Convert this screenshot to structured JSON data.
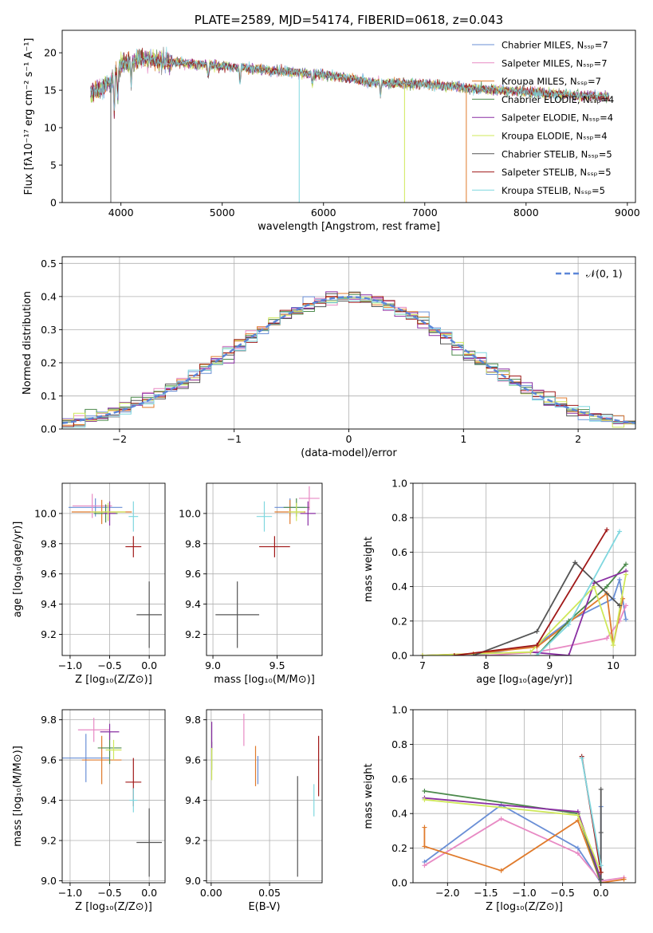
{
  "colors": {
    "chabrier_miles": "#6a8fd6",
    "salpeter_miles": "#e88ac4",
    "kroupa_miles": "#e07b2c",
    "chabrier_elodie": "#4c8a4c",
    "salpeter_elodie": "#8a2fa3",
    "kroupa_elodie": "#cfe85a",
    "chabrier_stelib": "#555555",
    "salpeter_stelib": "#a01818",
    "kroupa_stelib": "#7fd7df"
  },
  "chart_data": [
    {
      "id": "spectrum",
      "type": "line",
      "title": "PLATE=2589, MJD=54174, FIBERID=0618, z=0.043",
      "xlabel": "wavelength [Angstrom, rest frame]",
      "ylabel": "Flux [fλ10⁻¹⁷ erg cm⁻² s⁻¹ A⁻¹]",
      "xlim": [
        3420,
        9080
      ],
      "ylim": [
        0,
        23
      ],
      "xticks": [
        "4000",
        "5000",
        "6000",
        "7000",
        "8000",
        "9000"
      ],
      "yticks": [
        "0",
        "5",
        "10",
        "15",
        "20"
      ],
      "legend_position": "right",
      "legend": [
        "Chabrier MILES, Nₛₛₚ=7",
        "Salpeter MILES, Nₛₛₚ=7",
        "Kroupa MILES, Nₛₛₚ=7",
        "Chabrier ELODIE, Nₛₛₚ=4",
        "Salpeter ELODIE, Nₛₛₚ=4",
        "Kroupa ELODIE, Nₛₛₚ=4",
        "Chabrier STELIB, Nₛₛₚ=5",
        "Salpeter STELIB, Nₛₛₚ=5",
        "Kroupa STELIB, Nₛₛₚ=5"
      ],
      "continuum": [
        [
          3700,
          14.6
        ],
        [
          3900,
          16
        ],
        [
          4000,
          18.5
        ],
        [
          4200,
          19.2
        ],
        [
          4500,
          18.8
        ],
        [
          5000,
          18.2
        ],
        [
          5500,
          17.6
        ],
        [
          6000,
          17.1
        ],
        [
          6500,
          16
        ],
        [
          7000,
          15.8
        ],
        [
          7500,
          15.2
        ],
        [
          8000,
          14.8
        ],
        [
          8500,
          14.3
        ],
        [
          8820,
          14.1
        ]
      ],
      "drops": [
        {
          "x": 3900,
          "y": 0,
          "color": "chabrier_stelib"
        },
        {
          "x": 5760,
          "y": 0,
          "color": "kroupa_stelib"
        },
        {
          "x": 6800,
          "y": 0,
          "color": "kroupa_elodie"
        },
        {
          "x": 7410,
          "y": 0,
          "color": "kroupa_miles"
        }
      ]
    },
    {
      "id": "residuals",
      "type": "histogram",
      "xlabel": "(data-model)/error",
      "ylabel": "Normed distribution",
      "xlim": [
        -2.5,
        2.5
      ],
      "ylim": [
        0,
        0.52
      ],
      "xticks": [
        "−2",
        "−1",
        "0",
        "1",
        "2"
      ],
      "yticks": [
        "0.0",
        "0.1",
        "0.2",
        "0.3",
        "0.4",
        "0.5"
      ],
      "legend": [
        "𝒩(0, 1)"
      ],
      "legend_position": "top-right",
      "bin_width": 0.1
    },
    {
      "id": "age_vs_z",
      "type": "errorbar",
      "xlabel": "Z [log₁₀(Z/Z⊙)]",
      "ylabel": "age  [log₁₀(age/yr)]",
      "xlim": [
        -1.1,
        0.2
      ],
      "ylim": [
        9.06,
        10.2
      ],
      "xticks": [
        "−1.0",
        "−0.5",
        "0.0"
      ],
      "yticks": [
        "9.2",
        "9.4",
        "9.6",
        "9.8",
        "10.0"
      ],
      "points": [
        {
          "c": "chabrier_miles",
          "x": -0.68,
          "xe": 0.34,
          "y": 10.04,
          "ye": 0.06
        },
        {
          "c": "salpeter_miles",
          "x": -0.72,
          "xe": 0.25,
          "y": 10.05,
          "ye": 0.08
        },
        {
          "c": "kroupa_miles",
          "x": -0.6,
          "xe": 0.38,
          "y": 10.01,
          "ye": 0.08
        },
        {
          "c": "chabrier_elodie",
          "x": -0.55,
          "xe": 0.15,
          "y": 10.0,
          "ye": 0.06
        },
        {
          "c": "salpeter_elodie",
          "x": -0.5,
          "xe": 0.08,
          "y": 10.0,
          "ye": 0.08
        },
        {
          "c": "kroupa_elodie",
          "x": -0.52,
          "xe": 0.22,
          "y": 10.01,
          "ye": 0.06
        },
        {
          "c": "chabrier_stelib",
          "x": 0.0,
          "xe": 0.16,
          "y": 9.33,
          "ye": 0.22
        },
        {
          "c": "salpeter_stelib",
          "x": -0.2,
          "xe": 0.1,
          "y": 9.78,
          "ye": 0.07
        },
        {
          "c": "kroupa_stelib",
          "x": -0.2,
          "xe": 0.06,
          "y": 9.98,
          "ye": 0.1
        }
      ]
    },
    {
      "id": "age_vs_mass",
      "type": "errorbar",
      "xlabel": "mass [log₁₀(M/M⊙)]",
      "xlim": [
        8.95,
        9.85
      ],
      "ylim": [
        9.06,
        10.2
      ],
      "xticks": [
        "9.0",
        "9.5"
      ],
      "yticks": [
        "9.2",
        "9.4",
        "9.6",
        "9.8",
        "10.0"
      ],
      "points": [
        {
          "c": "chabrier_miles",
          "x": 9.6,
          "xe": 0.12,
          "y": 10.04,
          "ye": 0.06
        },
        {
          "c": "salpeter_miles",
          "x": 9.75,
          "xe": 0.08,
          "y": 10.1,
          "ye": 0.08
        },
        {
          "c": "kroupa_miles",
          "x": 9.6,
          "xe": 0.12,
          "y": 10.01,
          "ye": 0.08
        },
        {
          "c": "chabrier_elodie",
          "x": 9.65,
          "xe": 0.1,
          "y": 10.04,
          "ye": 0.06
        },
        {
          "c": "salpeter_elodie",
          "x": 9.74,
          "xe": 0.06,
          "y": 10.0,
          "ye": 0.08
        },
        {
          "c": "kroupa_elodie",
          "x": 9.65,
          "xe": 0.06,
          "y": 10.01,
          "ye": 0.06
        },
        {
          "c": "chabrier_stelib",
          "x": 9.19,
          "xe": 0.17,
          "y": 9.33,
          "ye": 0.22
        },
        {
          "c": "salpeter_stelib",
          "x": 9.48,
          "xe": 0.12,
          "y": 9.78,
          "ye": 0.07
        },
        {
          "c": "kroupa_stelib",
          "x": 9.4,
          "xe": 0.06,
          "y": 9.98,
          "ye": 0.1
        }
      ]
    },
    {
      "id": "massweight_vs_age",
      "type": "line",
      "xlabel": "age  [log₁₀(age/yr)]",
      "ylabel": "mass weight",
      "xlim": [
        6.85,
        10.35
      ],
      "ylim": [
        0,
        1.0
      ],
      "xticks": [
        "7",
        "8",
        "9",
        "10"
      ],
      "yticks": [
        "0.0",
        "0.2",
        "0.4",
        "0.6",
        "0.8",
        "1.0"
      ],
      "series": [
        {
          "c": "chabrier_miles",
          "x": [
            7.0,
            8.0,
            8.8,
            9.3,
            10.0,
            10.1,
            10.2
          ],
          "y": [
            0.0,
            0.01,
            0.06,
            0.2,
            0.33,
            0.44,
            0.21
          ]
        },
        {
          "c": "salpeter_miles",
          "x": [
            7.0,
            8.0,
            8.8,
            9.9,
            10.1,
            10.2
          ],
          "y": [
            0.0,
            0.0,
            0.02,
            0.1,
            0.2,
            0.29
          ]
        },
        {
          "c": "kroupa_miles",
          "x": [
            7.0,
            7.8,
            8.8,
            9.9,
            10.0,
            10.15
          ],
          "y": [
            0.0,
            0.01,
            0.05,
            0.36,
            0.06,
            0.33
          ]
        },
        {
          "c": "chabrier_elodie",
          "x": [
            8.8,
            9.3,
            9.9,
            10.2
          ],
          "y": [
            0.0,
            0.2,
            0.4,
            0.53
          ]
        },
        {
          "c": "salpeter_elodie",
          "x": [
            8.7,
            9.3,
            9.7,
            10.2
          ],
          "y": [
            0.02,
            0.0,
            0.42,
            0.49
          ]
        },
        {
          "c": "kroupa_elodie",
          "x": [
            7.0,
            8.7,
            9.7,
            10.0,
            10.2
          ],
          "y": [
            0.0,
            0.02,
            0.4,
            0.06,
            0.47
          ]
        },
        {
          "c": "chabrier_stelib",
          "x": [
            7.8,
            8.8,
            9.4,
            10.1
          ],
          "y": [
            0.0,
            0.14,
            0.54,
            0.29
          ]
        },
        {
          "c": "salpeter_stelib",
          "x": [
            7.5,
            8.8,
            9.9
          ],
          "y": [
            0.0,
            0.06,
            0.73
          ]
        },
        {
          "c": "kroupa_stelib",
          "x": [
            8.8,
            9.3,
            10.1
          ],
          "y": [
            0.0,
            0.18,
            0.72
          ]
        }
      ]
    },
    {
      "id": "mass_vs_z",
      "type": "errorbar",
      "xlabel": "Z [log₁₀(Z/Z⊙)]",
      "ylabel": "mass [log₁₀(M/M⊙)]",
      "xlim": [
        -1.1,
        0.2
      ],
      "ylim": [
        8.99,
        9.85
      ],
      "xticks": [
        "−1.0",
        "−0.5",
        "0.0"
      ],
      "yticks": [
        "9.0",
        "9.2",
        "9.4",
        "9.6",
        "9.8"
      ],
      "points": [
        {
          "c": "chabrier_miles",
          "x": -0.8,
          "xe": 0.3,
          "y": 9.61,
          "ye": 0.12
        },
        {
          "c": "salpeter_miles",
          "x": -0.7,
          "xe": 0.2,
          "y": 9.75,
          "ye": 0.06
        },
        {
          "c": "kroupa_miles",
          "x": -0.6,
          "xe": 0.25,
          "y": 9.6,
          "ye": 0.12
        },
        {
          "c": "chabrier_elodie",
          "x": -0.5,
          "xe": 0.15,
          "y": 9.66,
          "ye": 0.08
        },
        {
          "c": "salpeter_elodie",
          "x": -0.5,
          "xe": 0.12,
          "y": 9.74,
          "ye": 0.04
        },
        {
          "c": "kroupa_elodie",
          "x": -0.45,
          "xe": 0.1,
          "y": 9.65,
          "ye": 0.05
        },
        {
          "c": "chabrier_stelib",
          "x": 0.0,
          "xe": 0.16,
          "y": 9.19,
          "ye": 0.17
        },
        {
          "c": "salpeter_stelib",
          "x": -0.2,
          "xe": 0.1,
          "y": 9.49,
          "ye": 0.12
        },
        {
          "c": "kroupa_stelib",
          "x": -0.2,
          "xe": 0.05,
          "y": 9.4,
          "ye": 0.06
        }
      ]
    },
    {
      "id": "mass_vs_ebv",
      "type": "errorbar",
      "xlabel": "E(B-V)",
      "xlim": [
        -0.004,
        0.095
      ],
      "ylim": [
        8.99,
        9.85
      ],
      "xticks": [
        "0.00",
        "0.05"
      ],
      "yticks": [
        "9.0",
        "9.2",
        "9.4",
        "9.6",
        "9.8"
      ],
      "points": [
        {
          "c": "chabrier_miles",
          "x": 0.04,
          "xe": 0,
          "y": 9.55,
          "ye": 0.07
        },
        {
          "c": "salpeter_miles",
          "x": 0.028,
          "xe": 0,
          "y": 9.75,
          "ye": 0.08
        },
        {
          "c": "kroupa_miles",
          "x": 0.038,
          "xe": 0,
          "y": 9.57,
          "ye": 0.1
        },
        {
          "c": "chabrier_elodie",
          "x": 0.0005,
          "xe": 0,
          "y": 9.62,
          "ye": 0.07
        },
        {
          "c": "salpeter_elodie",
          "x": 0.0005,
          "xe": 0,
          "y": 9.72,
          "ye": 0.07
        },
        {
          "c": "kroupa_elodie",
          "x": 0.0005,
          "xe": 0,
          "y": 9.58,
          "ye": 0.08
        },
        {
          "c": "chabrier_stelib",
          "x": 0.074,
          "xe": 0,
          "y": 9.27,
          "ye": 0.25
        },
        {
          "c": "salpeter_stelib",
          "x": 0.092,
          "xe": 0,
          "y": 9.57,
          "ye": 0.15
        },
        {
          "c": "kroupa_stelib",
          "x": 0.088,
          "xe": 0,
          "y": 9.4,
          "ye": 0.08
        }
      ]
    },
    {
      "id": "massweight_vs_z",
      "type": "line",
      "xlabel": "Z [log₁₀(Z/Z⊙)]",
      "ylabel": "mass weight",
      "xlim": [
        -2.45,
        0.45
      ],
      "ylim": [
        0,
        1.0
      ],
      "xticks": [
        "−2.0",
        "−1.5",
        "−1.0",
        "−0.5",
        "0.0"
      ],
      "yticks": [
        "0.0",
        "0.2",
        "0.4",
        "0.6",
        "0.8",
        "1.0"
      ],
      "series": [
        {
          "c": "chabrier_miles",
          "x": [
            -2.3,
            -1.3,
            -0.3,
            0.0,
            0.0
          ],
          "y": [
            0.12,
            0.45,
            0.2,
            0.0,
            0.44
          ]
        },
        {
          "c": "salpeter_miles",
          "x": [
            -2.3,
            -1.3,
            -0.3,
            0.0,
            0.3
          ],
          "y": [
            0.1,
            0.37,
            0.17,
            0.01,
            0.03
          ]
        },
        {
          "c": "kroupa_miles",
          "x": [
            -2.3,
            -2.3,
            -1.3,
            -0.3,
            0.0,
            0.3
          ],
          "y": [
            0.32,
            0.21,
            0.07,
            0.36,
            0.0,
            0.02
          ]
        },
        {
          "c": "chabrier_elodie",
          "x": [
            -2.3,
            -0.3,
            0.0
          ],
          "y": [
            0.53,
            0.4,
            0.0
          ]
        },
        {
          "c": "salpeter_elodie",
          "x": [
            -2.3,
            -0.3,
            0.0
          ],
          "y": [
            0.49,
            0.41,
            0.02
          ]
        },
        {
          "c": "kroupa_elodie",
          "x": [
            -2.3,
            -0.3,
            0.0
          ],
          "y": [
            0.48,
            0.39,
            0.06
          ]
        },
        {
          "c": "chabrier_stelib",
          "x": [
            0.0,
            0.0,
            0.0
          ],
          "y": [
            0.54,
            0.29,
            0.02
          ]
        },
        {
          "c": "salpeter_stelib",
          "x": [
            -0.25,
            0.0
          ],
          "y": [
            0.73,
            0.06
          ]
        },
        {
          "c": "kroupa_stelib",
          "x": [
            -0.25,
            0.0
          ],
          "y": [
            0.72,
            0.1
          ]
        }
      ]
    }
  ]
}
